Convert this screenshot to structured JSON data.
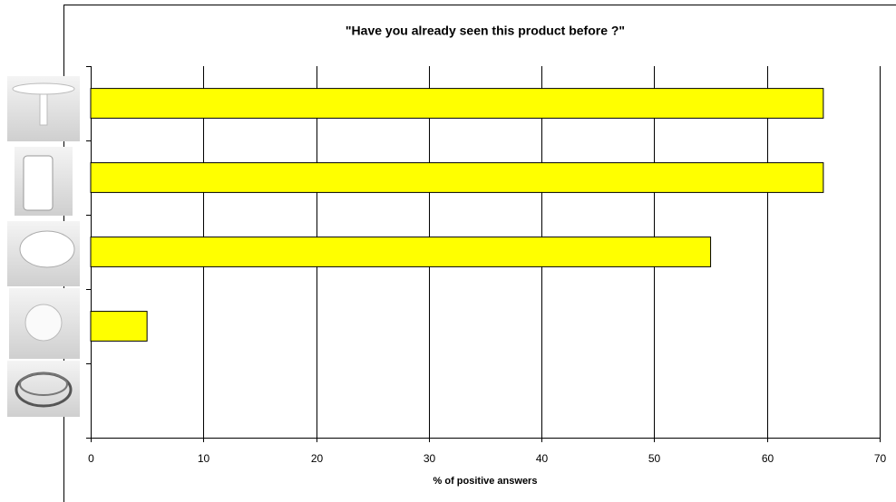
{
  "chart_data": {
    "type": "bar",
    "orientation": "horizontal",
    "title": "\"Have you already seen this product before ?\"",
    "xlabel": "% of positive answers",
    "categories": [
      null,
      null,
      null,
      null,
      null
    ],
    "values": [
      65,
      65,
      55,
      5,
      0
    ],
    "color": "#ffff00",
    "xlim": [
      0,
      70
    ],
    "xticks": [
      0,
      10,
      20,
      30,
      40,
      50,
      60,
      70
    ],
    "grid": true
  }
}
